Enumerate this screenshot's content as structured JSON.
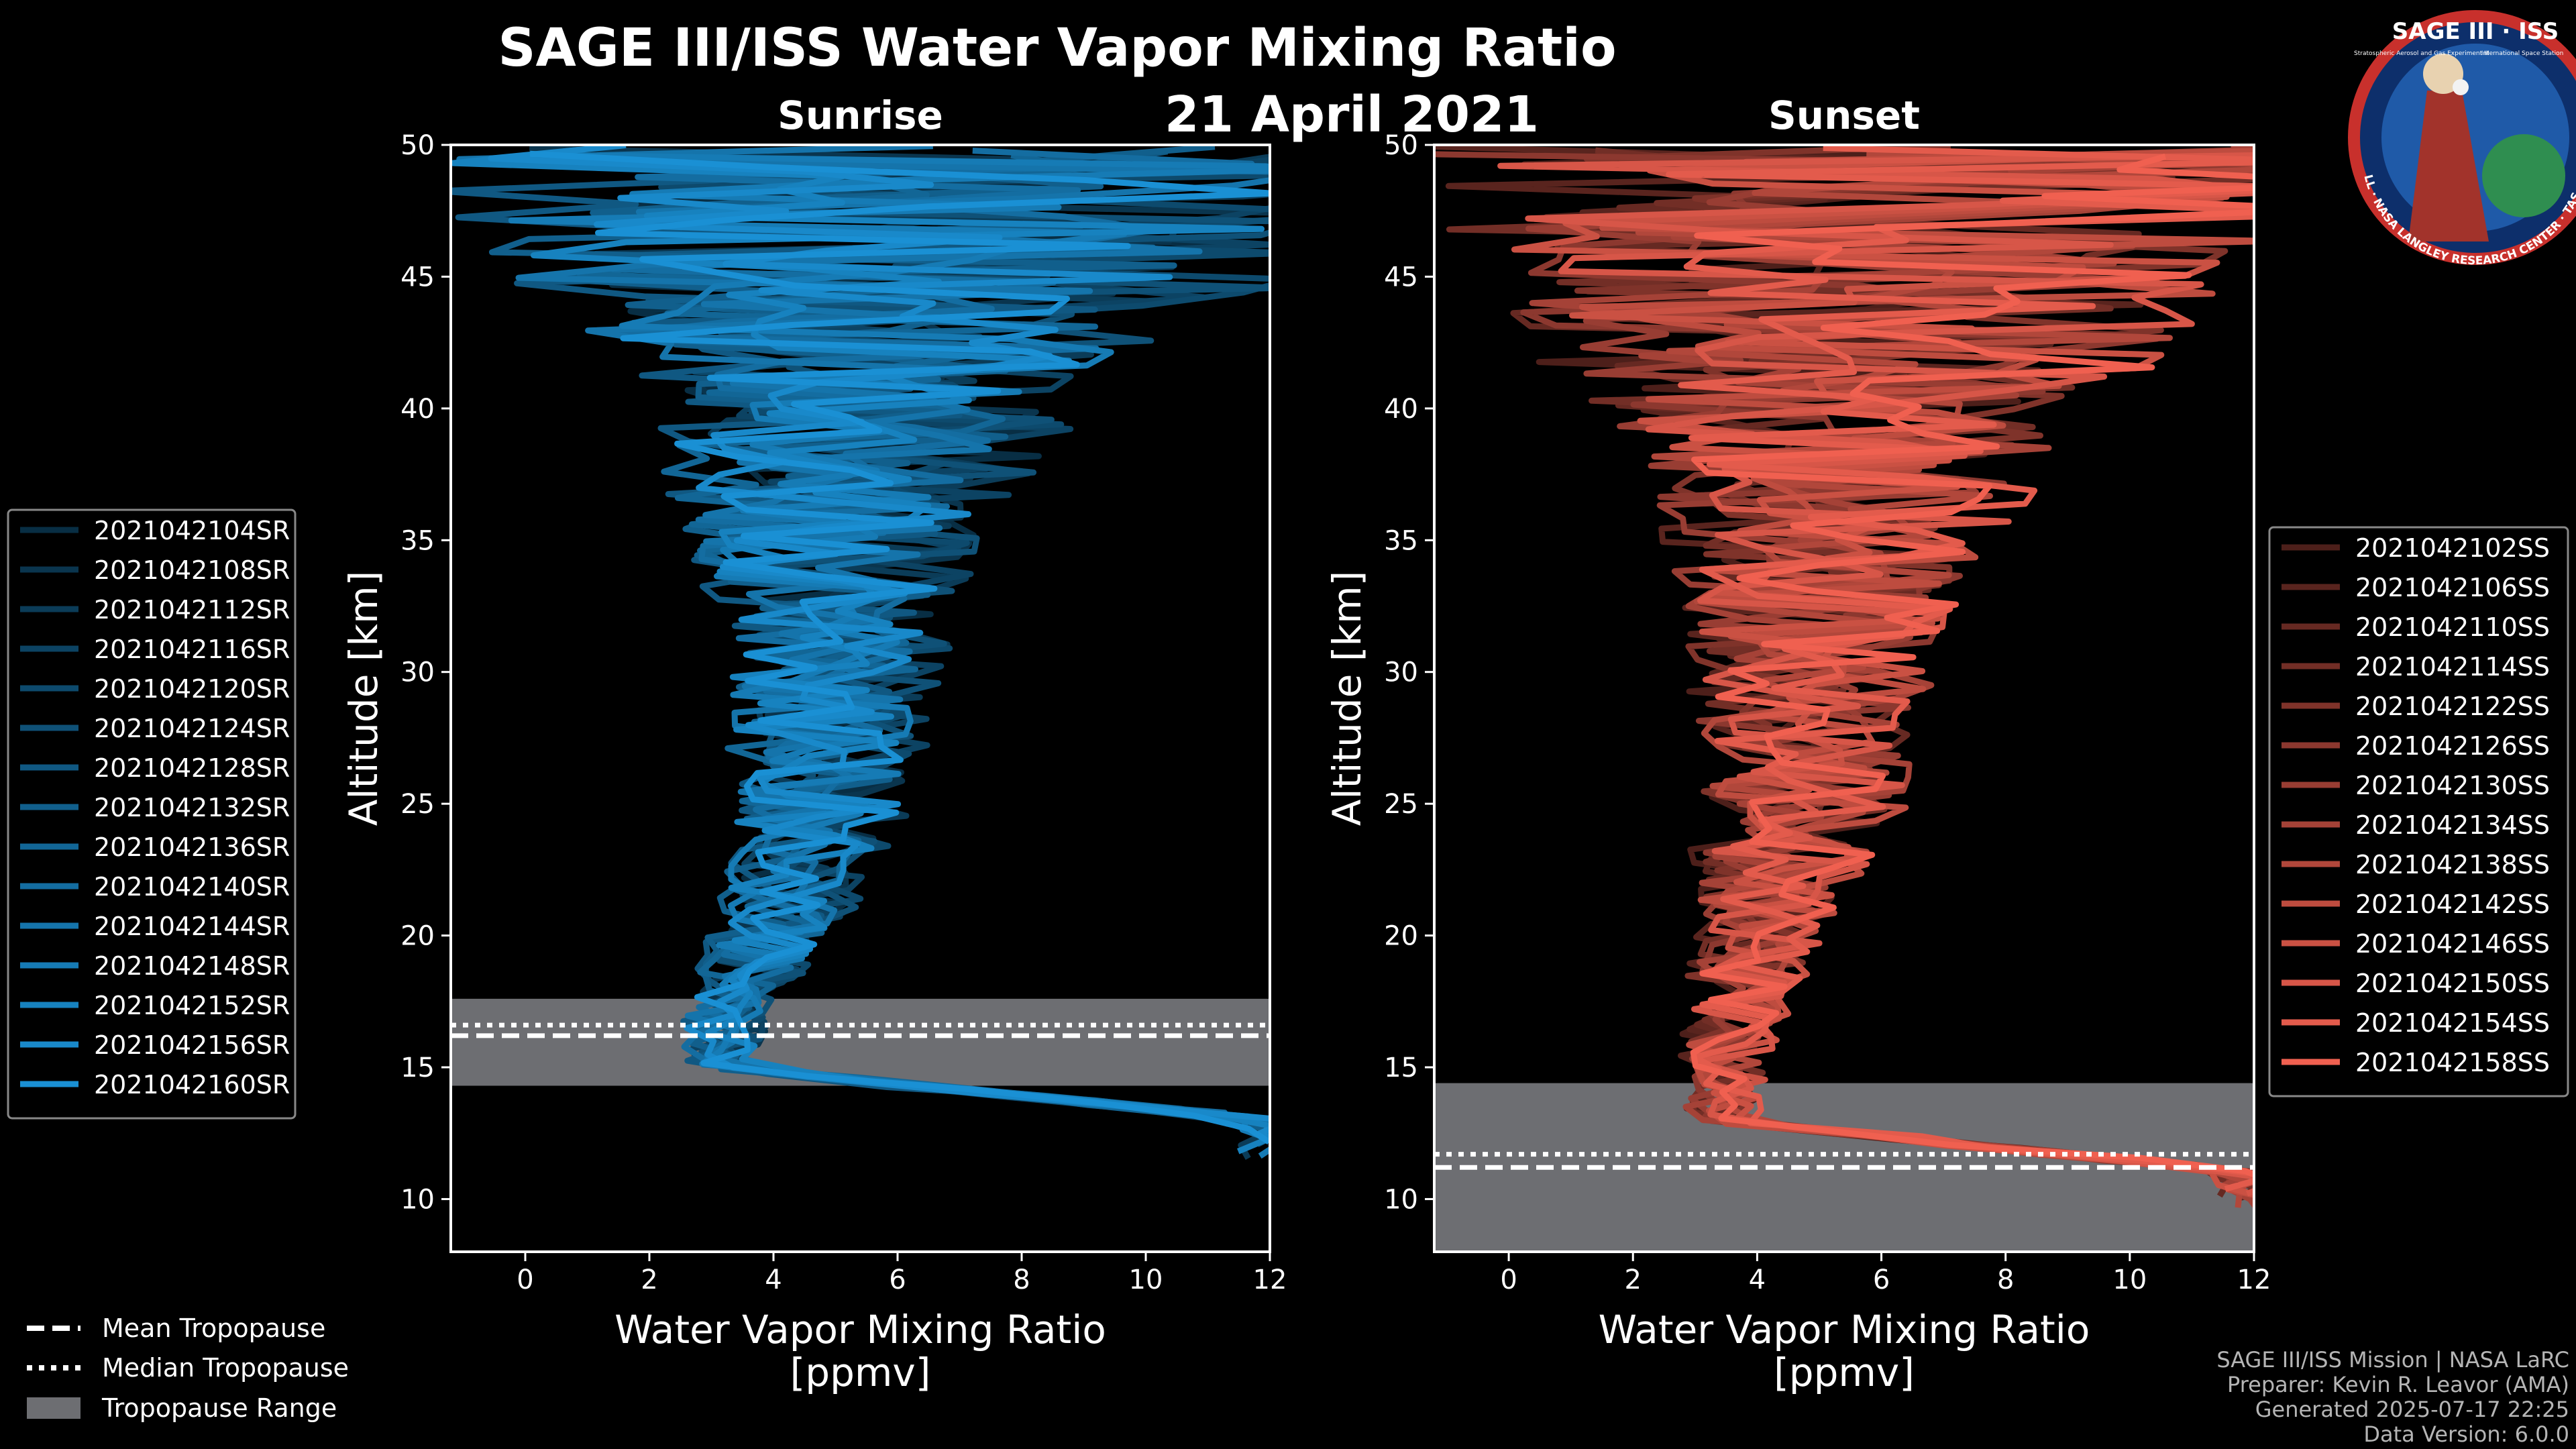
{
  "page": {
    "title": "SAGE III/ISS Water Vapor Mixing Ratio",
    "date": "21 April 2021",
    "footer": [
      "SAGE III/ISS Mission | NASA LaRC",
      "Preparer: Kevin R. Leavor (AMA)",
      "Generated 2025-07-17 22:25",
      "Data Version: 6.0.0"
    ],
    "logo": {
      "title": "SAGE III · ISS",
      "subtitle": "Stratospheric Aerosol and Gas Experiment III",
      "partner": "International Space Station",
      "ring_text": "BALL · NASA LANGLEY RESEARCH CENTER · TAS · ESA"
    }
  },
  "colors": {
    "background": "#000000",
    "sunrise_base": "#1a90d4",
    "sunset_base": "#f06050",
    "tropopause_band": "#6d6e72"
  },
  "chart_data": [
    {
      "type": "line",
      "title": "Sunrise",
      "xlabel": "Water Vapor Mixing Ratio\n[ppmv]",
      "ylabel": "Altitude [km]",
      "xlim": [
        -1.2,
        12
      ],
      "ylim": [
        8,
        50
      ],
      "xticks": [
        0,
        2,
        4,
        6,
        8,
        10,
        12
      ],
      "yticks": [
        10,
        15,
        20,
        25,
        30,
        35,
        40,
        45,
        50
      ],
      "grid": false,
      "legend_position": "left",
      "tropopause": {
        "mean": 16.2,
        "median": 16.6,
        "range": [
          14.3,
          17.6
        ]
      },
      "series_names": [
        "2021042104SR",
        "2021042108SR",
        "2021042112SR",
        "2021042116SR",
        "2021042120SR",
        "2021042124SR",
        "2021042128SR",
        "2021042132SR",
        "2021042136SR",
        "2021042140SR",
        "2021042144SR",
        "2021042148SR",
        "2021042152SR",
        "2021042156SR",
        "2021042160SR"
      ],
      "profile_envelope": {
        "altitude": [
          13,
          15,
          17,
          20,
          25,
          30,
          35,
          40,
          45,
          50
        ],
        "center": [
          12,
          3.2,
          3.2,
          4.0,
          4.8,
          5.0,
          5.0,
          5.5,
          6.0,
          7.0
        ],
        "spread": [
          0.6,
          0.6,
          0.6,
          0.9,
          1.3,
          1.6,
          2.0,
          3.2,
          5.5,
          8.0
        ]
      }
    },
    {
      "type": "line",
      "title": "Sunset",
      "xlabel": "Water Vapor Mixing Ratio\n[ppmv]",
      "ylabel": "Altitude [km]",
      "xlim": [
        -1.2,
        12
      ],
      "ylim": [
        8,
        50
      ],
      "xticks": [
        0,
        2,
        4,
        6,
        8,
        10,
        12
      ],
      "yticks": [
        10,
        15,
        20,
        25,
        30,
        35,
        40,
        45,
        50
      ],
      "grid": false,
      "legend_position": "right",
      "tropopause": {
        "mean": 11.2,
        "median": 11.7,
        "range": [
          8.0,
          14.4
        ]
      },
      "series_names": [
        "2021042102SS",
        "2021042106SS",
        "2021042110SS",
        "2021042114SS",
        "2021042122SS",
        "2021042126SS",
        "2021042130SS",
        "2021042134SS",
        "2021042138SS",
        "2021042142SS",
        "2021042146SS",
        "2021042150SS",
        "2021042154SS",
        "2021042158SS"
      ],
      "profile_envelope": {
        "altitude": [
          11,
          13,
          15,
          20,
          25,
          30,
          35,
          40,
          45,
          50
        ],
        "center": [
          12,
          3.4,
          3.5,
          4.0,
          4.8,
          5.0,
          5.2,
          5.6,
          6.0,
          7.0
        ],
        "spread": [
          0.6,
          0.6,
          0.7,
          1.0,
          1.6,
          2.0,
          2.5,
          3.8,
          6.0,
          8.0
        ]
      }
    }
  ],
  "legend_shared": {
    "mean": "Mean Tropopause",
    "median": "Median Tropopause",
    "range": "Tropopause Range"
  }
}
